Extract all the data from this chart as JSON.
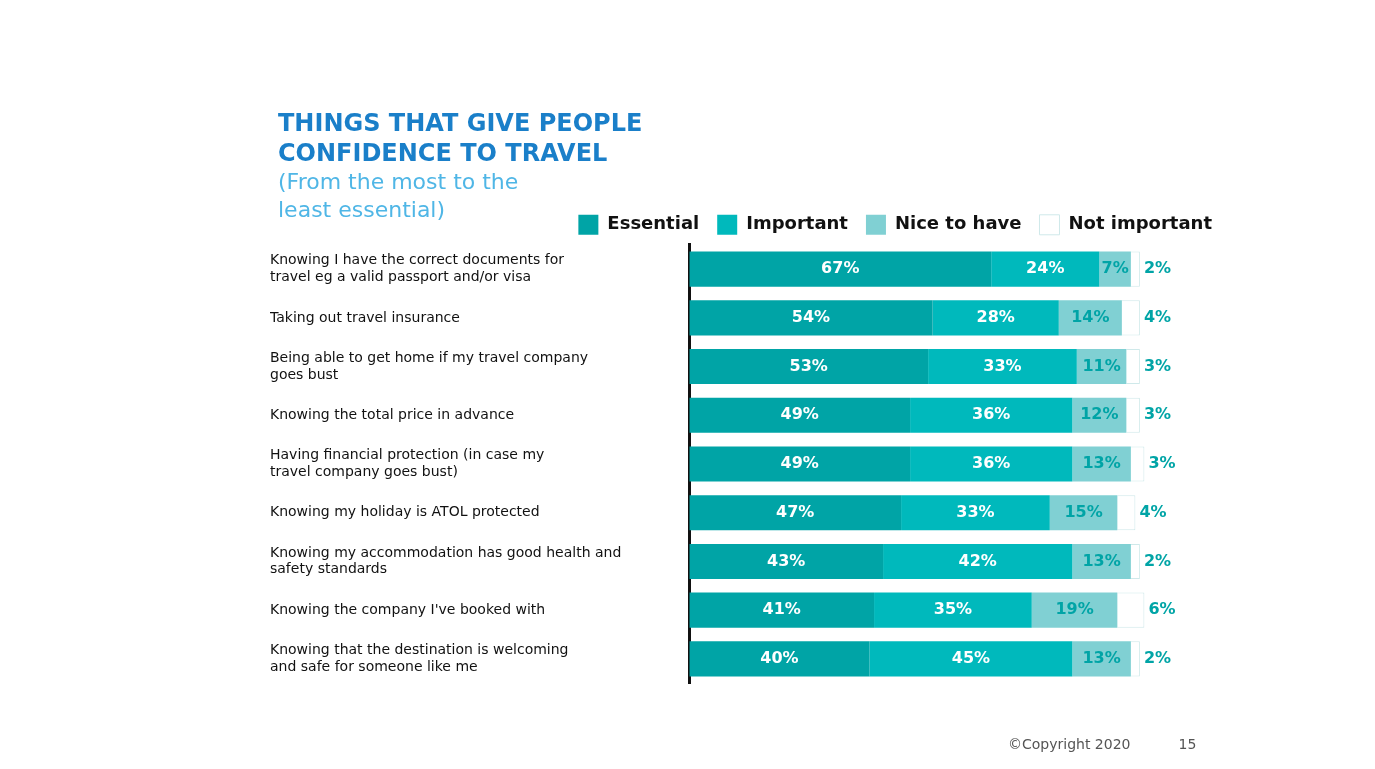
{
  "chart_data": {
    "type": "bar",
    "orientation": "horizontal",
    "stacked": true,
    "title": "THINGS THAT GIVE PEOPLE CONFIDENCE TO TRAVEL",
    "subtitle": "(From the most to the least essential)",
    "categories": [
      "Knowing I have the correct documents for travel eg a valid passport and/or visa",
      "Taking out travel insurance",
      "Being able to get home if my travel company goes bust",
      "Knowing the total price in advance",
      "Having financial protection (in case my travel company goes bust)",
      "Knowing my holiday is ATOL protected",
      "Knowing my accommodation has good health and safety standards",
      "Knowing the company I've booked with",
      "Knowing that the destination is welcoming and safe for someone like me"
    ],
    "series": [
      {
        "name": "Essential",
        "color": "#00a4a6",
        "values": [
          67,
          54,
          53,
          49,
          49,
          47,
          43,
          41,
          40
        ],
        "value_labels": [
          "67%",
          "54%",
          "53%",
          "49%",
          "49%",
          "47%",
          "43%",
          "41%",
          "40%"
        ]
      },
      {
        "name": "Important",
        "color": "#00b9bc",
        "values": [
          24,
          28,
          33,
          36,
          36,
          33,
          42,
          35,
          45
        ],
        "value_labels": [
          "24%",
          "28%",
          "33%",
          "36%",
          "36%",
          "33%",
          "42%",
          "35%",
          "45%"
        ]
      },
      {
        "name": "Nice to have",
        "color": "#80d0d3",
        "values": [
          7,
          14,
          11,
          12,
          13,
          15,
          13,
          19,
          13
        ],
        "value_labels": [
          "7%",
          "14%",
          "11%",
          "12%",
          "13%",
          "15%",
          "13%",
          "19%",
          "13%"
        ]
      },
      {
        "name": "Not important",
        "color": "#ffffff",
        "values": [
          2,
          4,
          3,
          3,
          3,
          4,
          2,
          6,
          2
        ],
        "value_labels": [
          "2%",
          "4%",
          "3%",
          "3%",
          "3%",
          "4%",
          "2%",
          "6%",
          "2%"
        ]
      }
    ],
    "legend": "top right",
    "grid": false,
    "annotations": [
      "©Copyright 2020",
      "15"
    ]
  }
}
